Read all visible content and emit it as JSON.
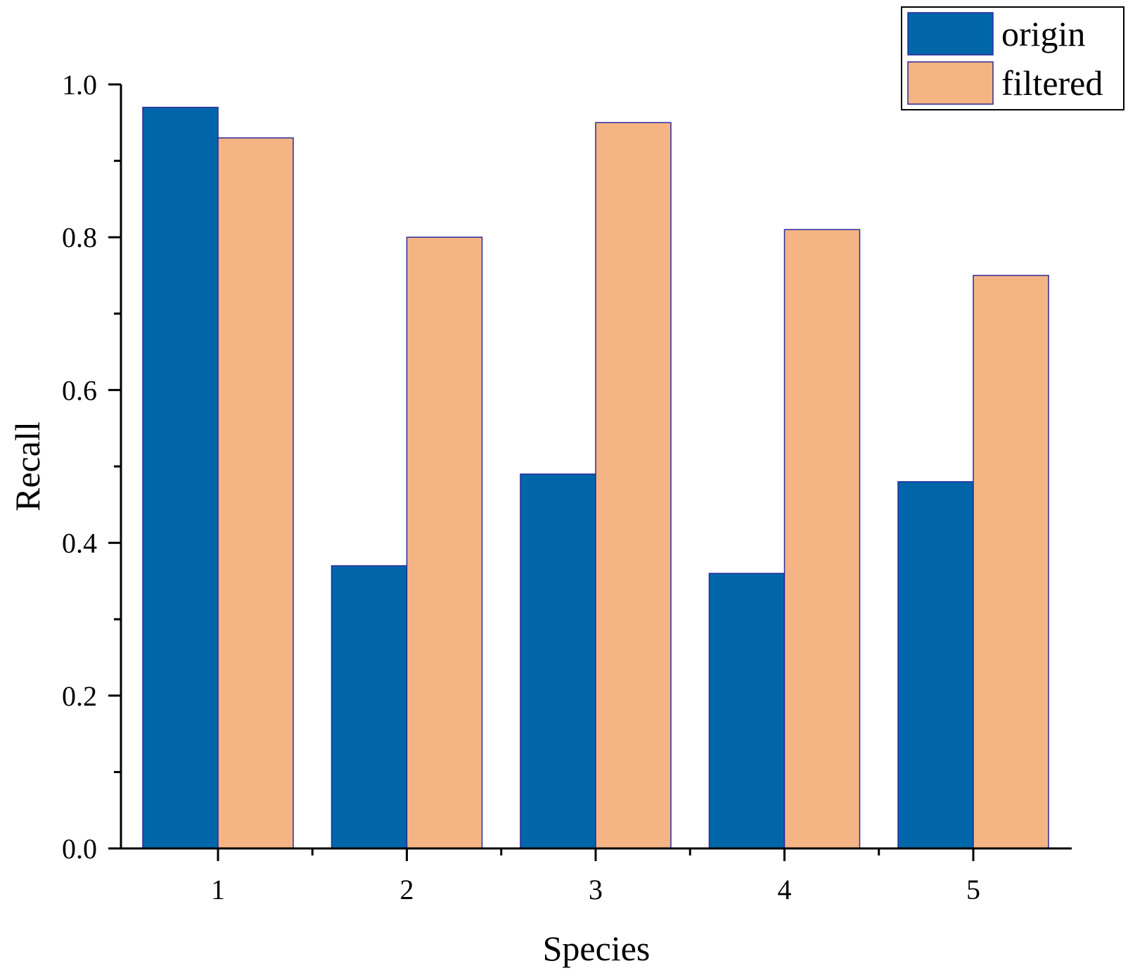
{
  "chart_data": {
    "type": "bar",
    "title": "",
    "xlabel": "Species",
    "ylabel": "Recall",
    "categories": [
      "1",
      "2",
      "3",
      "4",
      "5"
    ],
    "series": [
      {
        "name": "origin",
        "color": "#0066AA",
        "values": [
          0.97,
          0.37,
          0.49,
          0.36,
          0.48
        ]
      },
      {
        "name": "filtered",
        "color": "#F4B483",
        "values": [
          0.93,
          0.8,
          0.95,
          0.81,
          0.75
        ]
      }
    ],
    "ylim": [
      0,
      1.0
    ],
    "y_major_ticks": [
      0.0,
      0.2,
      0.4,
      0.6,
      0.8,
      1.0
    ],
    "y_tick_labels": [
      "0.0",
      "0.2",
      "0.4",
      "0.6",
      "0.8",
      "1.0"
    ],
    "y_minor_ticks": [
      0.1,
      0.3,
      0.5,
      0.7,
      0.9
    ],
    "grid": false,
    "legend_position": "top-right"
  }
}
